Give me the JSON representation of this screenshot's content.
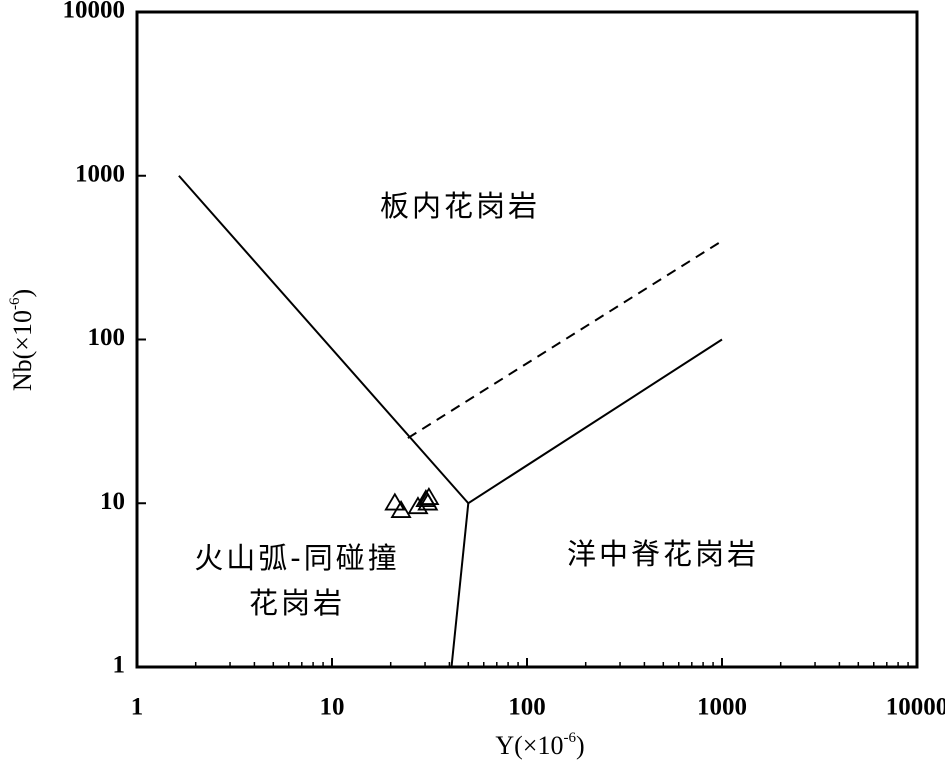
{
  "chart_data": {
    "type": "scatter",
    "x_label": {
      "text": "Y(×10",
      "superscript": "-6",
      "suffix": ")"
    },
    "y_label": {
      "text": "Nb(×10",
      "superscript": "-6",
      "suffix": ")"
    },
    "log_x": true,
    "log_y": true,
    "xlim": [
      1,
      10000
    ],
    "ylim": [
      1,
      10000
    ],
    "xticks": [
      1,
      10,
      100,
      1000,
      10000
    ],
    "yticks": [
      1,
      10,
      100,
      1000,
      10000
    ],
    "xminorticks": [
      2,
      3,
      4,
      5,
      6,
      7,
      8,
      9,
      20,
      30,
      40,
      50,
      60,
      70,
      80,
      90,
      200,
      300,
      400,
      500,
      600,
      700,
      800,
      900,
      2000,
      3000,
      4000,
      5000,
      6000,
      7000,
      8000,
      9000
    ],
    "series": [
      {
        "marker": "triangle-open",
        "color": "#000000",
        "x": [
          21,
          22.6,
          27.6,
          30.3,
          31,
          31.4
        ],
        "values": [
          10,
          9,
          9.5,
          10.5,
          10,
          10.8
        ]
      }
    ],
    "boundaries": [
      {
        "style": "solid",
        "x": [
          1.64,
          50,
          1000
        ],
        "y": [
          1000,
          10,
          100
        ]
      },
      {
        "style": "solid",
        "x": [
          50,
          41
        ],
        "y": [
          10,
          1
        ]
      },
      {
        "style": "dashed",
        "x": [
          24.5,
          1000
        ],
        "y": [
          25,
          400
        ]
      }
    ],
    "annotations": [
      "板内花岗岩",
      "洋中脊花岗岩",
      "火山弧-同碰撞",
      "花岗岩"
    ]
  }
}
